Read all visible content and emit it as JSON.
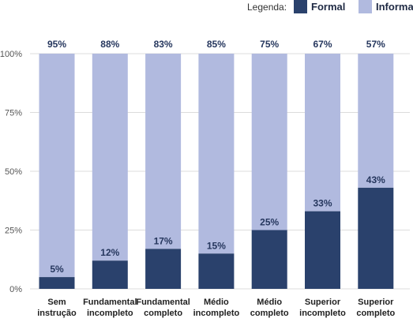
{
  "chart_data": {
    "type": "bar",
    "stacked": true,
    "legend": {
      "title": "Legenda:",
      "placement": "top-right",
      "entries": [
        {
          "name": "Formal",
          "color": "#2a416c"
        },
        {
          "name": "Informal",
          "color": "#b1badf"
        }
      ]
    },
    "categories": [
      [
        "Sem",
        "instrução"
      ],
      [
        "Fundamental",
        "incompleto"
      ],
      [
        "Fundamental",
        "completo"
      ],
      [
        "Médio",
        "incompleto"
      ],
      [
        "Médio",
        "completo"
      ],
      [
        "Superior",
        "incompleto"
      ],
      [
        "Superior",
        "completo"
      ]
    ],
    "series": [
      {
        "name": "Formal",
        "color": "#2a416c",
        "values": [
          5,
          12,
          17,
          15,
          25,
          33,
          43
        ],
        "labels": [
          "5%",
          "12%",
          "17%",
          "15%",
          "25%",
          "33%",
          "43%"
        ]
      },
      {
        "name": "Informal",
        "color": "#b1badf",
        "values": [
          95,
          88,
          83,
          85,
          75,
          67,
          57
        ],
        "labels": [
          "95%",
          "88%",
          "83%",
          "85%",
          "75%",
          "67%",
          "57%"
        ]
      }
    ],
    "ylim": [
      0,
      100
    ],
    "yticks": [
      {
        "value": 0,
        "label": "0%"
      },
      {
        "value": 25,
        "label": "25%"
      },
      {
        "value": 50,
        "label": "50%"
      },
      {
        "value": 75,
        "label": "75%"
      },
      {
        "value": 100,
        "label": "100%"
      }
    ],
    "grid": true
  }
}
